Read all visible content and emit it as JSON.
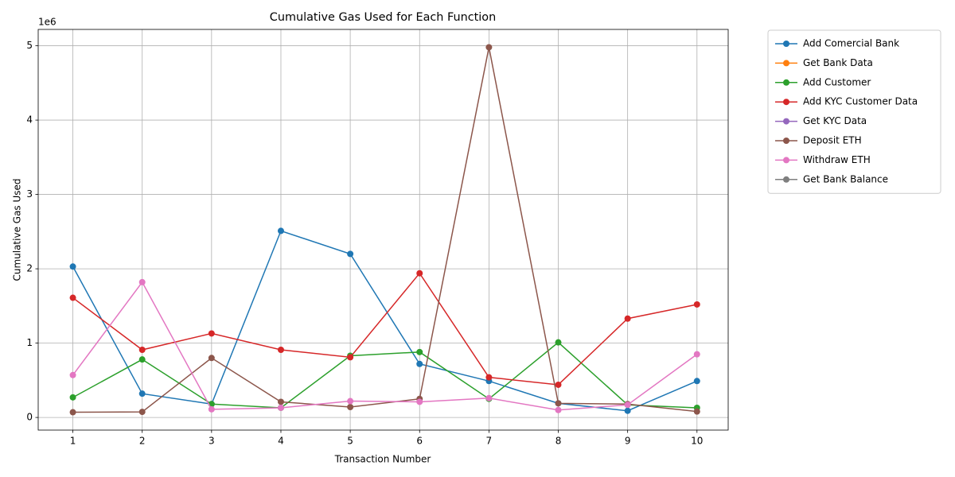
{
  "chart_data": {
    "type": "line",
    "title": "Cumulative Gas Used for Each Function",
    "x_label": "Transaction Number",
    "y_label": "Cumulative Gas Used",
    "y_offset_label": "1e6",
    "x": [
      1,
      2,
      3,
      4,
      5,
      6,
      7,
      8,
      9,
      10
    ],
    "xlim": [
      0.5,
      10.45
    ],
    "xticks": [
      1,
      2,
      3,
      4,
      5,
      6,
      7,
      8,
      9,
      10
    ],
    "ylim": [
      -0.17,
      5.22
    ],
    "yticks": [
      0,
      1,
      2,
      3,
      4,
      5
    ],
    "grid": true,
    "legend": "outside right",
    "series": [
      {
        "name": "Add Comercial Bank",
        "color": "#1f77b4",
        "values": [
          2.03,
          0.32,
          0.18,
          2.51,
          2.2,
          0.72,
          0.49,
          0.19,
          0.09,
          0.49
        ]
      },
      {
        "name": "Get Bank Data",
        "color": "#ff7f0e",
        "values": [
          null,
          null,
          null,
          null,
          null,
          null,
          null,
          null,
          null,
          null
        ]
      },
      {
        "name": "Add Customer",
        "color": "#2ca02c",
        "values": [
          0.27,
          0.78,
          0.18,
          0.13,
          0.83,
          0.88,
          0.25,
          1.01,
          0.17,
          0.13
        ]
      },
      {
        "name": "Add KYC Customer Data",
        "color": "#d62728",
        "values": [
          1.61,
          0.91,
          1.13,
          0.91,
          0.81,
          1.94,
          0.54,
          0.44,
          1.33,
          1.52
        ]
      },
      {
        "name": "Get KYC Data",
        "color": "#9467bd",
        "values": [
          null,
          null,
          null,
          null,
          null,
          null,
          null,
          null,
          null,
          null
        ]
      },
      {
        "name": "Deposit ETH",
        "color": "#8c564b",
        "values": [
          0.07,
          0.075,
          0.8,
          0.21,
          0.14,
          0.25,
          4.98,
          0.19,
          0.18,
          0.08
        ]
      },
      {
        "name": "Withdraw ETH",
        "color": "#e377c2",
        "values": [
          0.57,
          1.82,
          0.11,
          0.13,
          0.22,
          0.21,
          0.26,
          0.1,
          0.17,
          0.85
        ]
      },
      {
        "name": "Get Bank Balance",
        "color": "#7f7f7f",
        "values": [
          null,
          null,
          null,
          null,
          null,
          null,
          null,
          null,
          null,
          null
        ]
      }
    ]
  }
}
